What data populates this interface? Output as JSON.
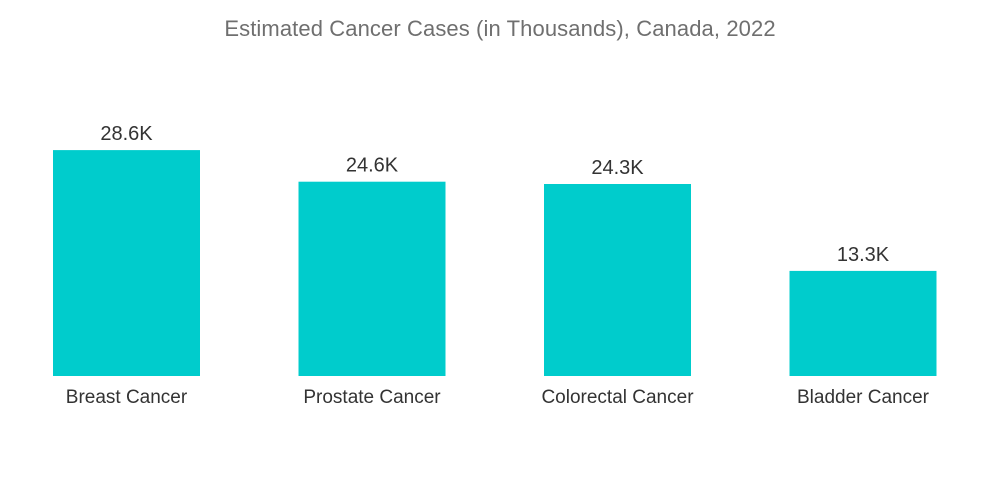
{
  "chart_data": {
    "type": "bar",
    "title": "Estimated Cancer Cases (in Thousands), Canada, 2022",
    "categories": [
      "Breast Cancer",
      "Prostate Cancer",
      "Colorectal Cancer",
      "Bladder Cancer"
    ],
    "values": [
      28.6,
      24.6,
      24.3,
      13.3
    ],
    "data_labels": [
      "28.6K",
      "24.6K",
      "24.3K",
      "13.3K"
    ],
    "xlabel": "",
    "ylabel": "",
    "ylim": [
      0,
      30
    ],
    "grid": false,
    "legend": "none",
    "bar_color": "#00cccc"
  }
}
